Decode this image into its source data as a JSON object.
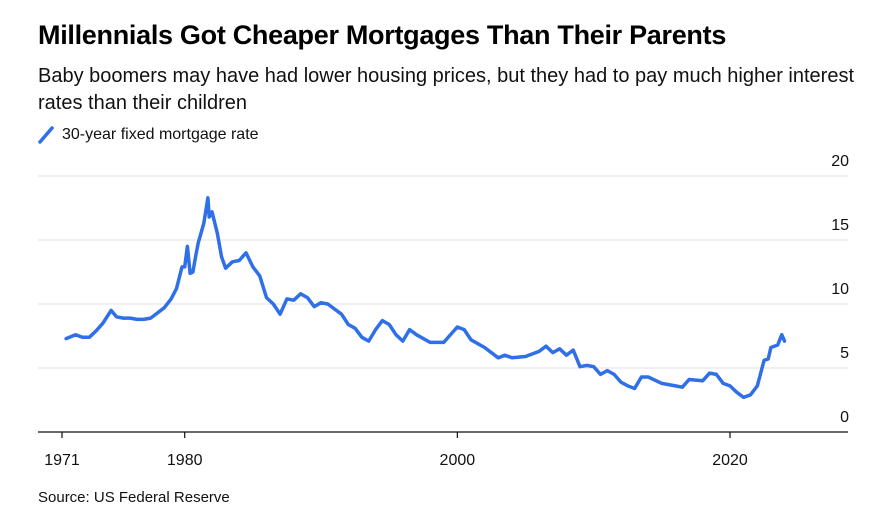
{
  "title": "Millennials Got Cheaper Mortgages Than Their Parents",
  "subtitle": "Baby boomers may have had lower housing prices, but they had to pay much higher interest rates than their children",
  "legend": {
    "label": "30-year fixed mortgage rate",
    "color": "#2f6fe8"
  },
  "source": "Source: US Federal Reserve",
  "chart_data": {
    "type": "line",
    "title": "Millennials Got Cheaper Mortgages Than Their Parents",
    "xlabel": "",
    "ylabel": "",
    "xlim": [
      1971,
      2028
    ],
    "ylim": [
      0,
      20
    ],
    "x_ticks": [
      1971,
      1980,
      2000,
      2020
    ],
    "y_ticks": [
      0,
      5,
      10,
      15,
      20
    ],
    "y_axis_position": "right",
    "grid": "horizontal",
    "legend_position": "top-left",
    "series": [
      {
        "name": "30-year fixed mortgage rate",
        "color": "#2f6fe8",
        "x": [
          1971.3,
          1972.0,
          1972.5,
          1973.0,
          1973.5,
          1974.0,
          1974.6,
          1975.0,
          1975.5,
          1976.0,
          1976.5,
          1977.0,
          1977.5,
          1978.0,
          1978.5,
          1979.0,
          1979.4,
          1979.8,
          1980.0,
          1980.2,
          1980.4,
          1980.6,
          1980.8,
          1981.0,
          1981.4,
          1981.7,
          1981.8,
          1982.0,
          1982.4,
          1982.7,
          1983.0,
          1983.5,
          1984.0,
          1984.5,
          1985.0,
          1985.5,
          1986.0,
          1986.5,
          1987.0,
          1987.5,
          1988.0,
          1988.5,
          1989.0,
          1989.5,
          1990.0,
          1990.5,
          1991.0,
          1991.5,
          1992.0,
          1992.5,
          1993.0,
          1993.5,
          1994.0,
          1994.5,
          1995.0,
          1995.5,
          1996.0,
          1996.5,
          1997.0,
          1998.0,
          1999.0,
          2000.0,
          2000.5,
          2001.0,
          2002.0,
          2003.0,
          2003.5,
          2004.0,
          2005.0,
          2006.0,
          2006.5,
          2007.0,
          2007.5,
          2008.0,
          2008.5,
          2009.0,
          2009.5,
          2010.0,
          2010.5,
          2011.0,
          2011.5,
          2012.0,
          2012.5,
          2013.0,
          2013.5,
          2014.0,
          2015.0,
          2016.0,
          2016.5,
          2017.0,
          2018.0,
          2018.5,
          2019.0,
          2019.5,
          2020.0,
          2020.5,
          2021.0,
          2021.5,
          2022.0,
          2022.5,
          2022.8,
          2023.0,
          2023.5,
          2023.8,
          2024.0
        ],
        "values": [
          7.3,
          7.6,
          7.4,
          7.4,
          7.9,
          8.5,
          9.5,
          9.0,
          8.9,
          8.9,
          8.8,
          8.8,
          8.9,
          9.3,
          9.7,
          10.4,
          11.2,
          12.9,
          12.9,
          14.5,
          12.4,
          12.5,
          13.7,
          14.8,
          16.3,
          18.3,
          16.8,
          17.2,
          15.5,
          13.7,
          12.8,
          13.3,
          13.4,
          14.0,
          12.9,
          12.2,
          10.5,
          10.0,
          9.2,
          10.4,
          10.3,
          10.8,
          10.5,
          9.8,
          10.1,
          10.0,
          9.6,
          9.2,
          8.4,
          8.1,
          7.4,
          7.1,
          8.0,
          8.7,
          8.4,
          7.6,
          7.1,
          8.0,
          7.6,
          7.0,
          7.0,
          8.2,
          8.0,
          7.2,
          6.6,
          5.8,
          6.0,
          5.8,
          5.9,
          6.3,
          6.7,
          6.2,
          6.5,
          6.0,
          6.4,
          5.1,
          5.2,
          5.1,
          4.5,
          4.8,
          4.5,
          3.9,
          3.6,
          3.4,
          4.3,
          4.3,
          3.8,
          3.6,
          3.5,
          4.1,
          4.0,
          4.6,
          4.5,
          3.8,
          3.6,
          3.1,
          2.7,
          2.9,
          3.6,
          5.6,
          5.7,
          6.6,
          6.8,
          7.6,
          7.1
        ]
      }
    ]
  }
}
